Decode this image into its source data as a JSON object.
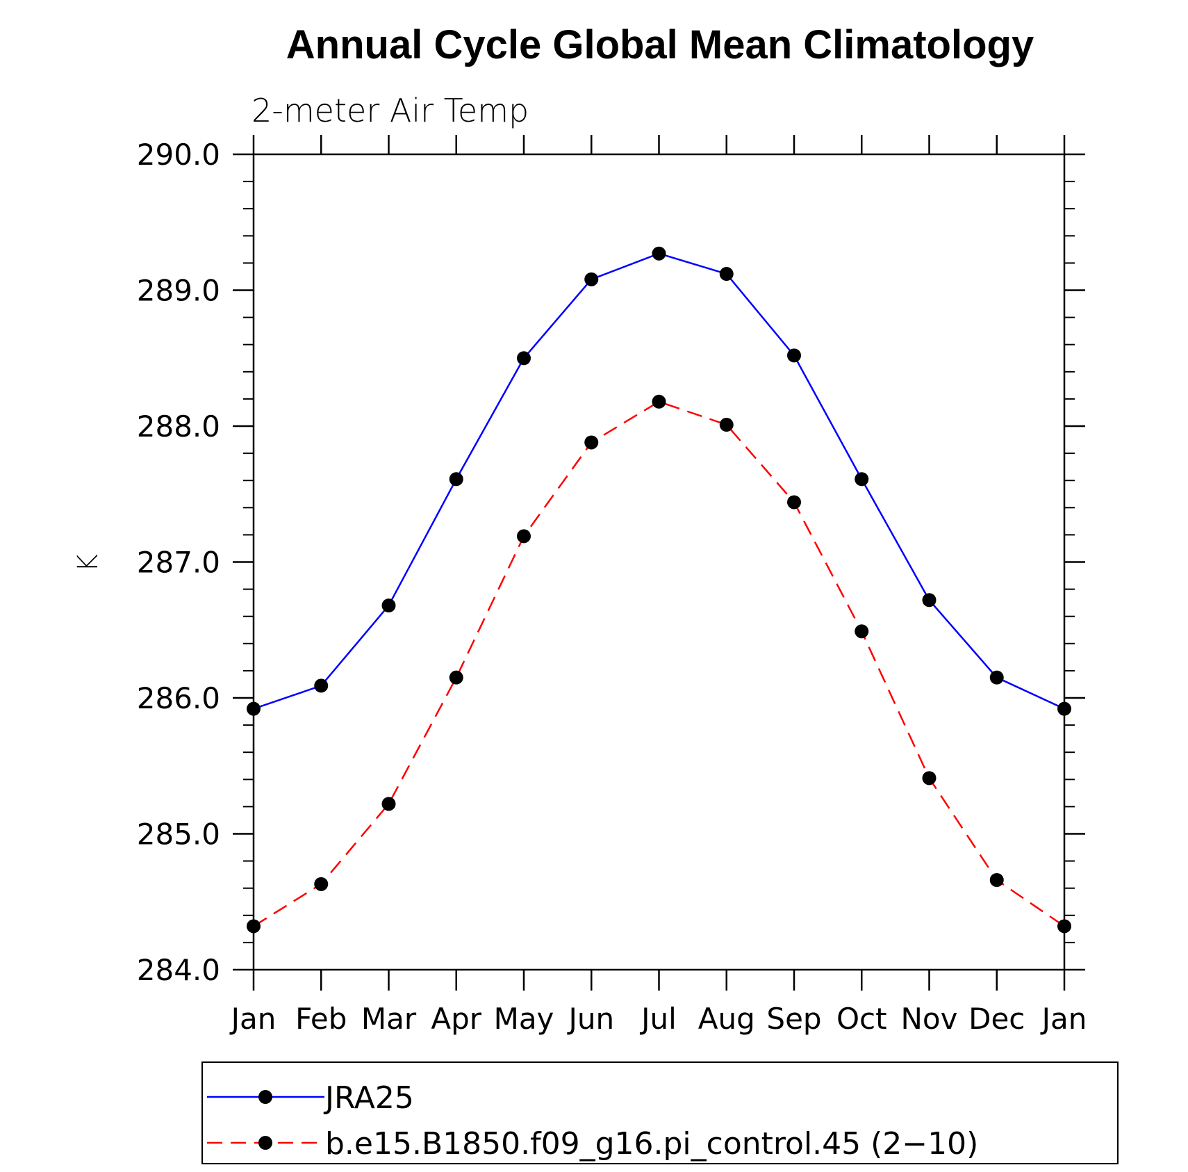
{
  "chart_data": {
    "type": "line",
    "title": "Annual Cycle Global Mean Climatology",
    "subtitle": "2-meter Air Temp",
    "xlabel": "",
    "ylabel": "K",
    "categories": [
      "Jan",
      "Feb",
      "Mar",
      "Apr",
      "May",
      "Jun",
      "Jul",
      "Aug",
      "Sep",
      "Oct",
      "Nov",
      "Dec",
      "Jan"
    ],
    "ylim": [
      284.0,
      290.0
    ],
    "yticks": [
      "284.0",
      "285.0",
      "286.0",
      "287.0",
      "288.0",
      "289.0",
      "290.0"
    ],
    "grid": false,
    "legend_position": "bottom",
    "series": [
      {
        "name": "JRA25",
        "color": "#0000ff",
        "line_style": "solid",
        "marker": "filled-circle",
        "values": [
          285.92,
          286.09,
          286.68,
          287.61,
          288.5,
          289.08,
          289.27,
          289.12,
          288.52,
          287.61,
          286.72,
          286.15,
          285.92
        ]
      },
      {
        "name": "b.e15.B1850.f09_g16.pi_control.45 (2−10)",
        "color": "#ff0000",
        "line_style": "dashed",
        "marker": "filled-circle",
        "values": [
          284.32,
          284.63,
          285.22,
          286.15,
          287.19,
          287.88,
          288.18,
          288.01,
          287.44,
          286.49,
          285.41,
          284.66,
          284.32
        ]
      }
    ]
  }
}
